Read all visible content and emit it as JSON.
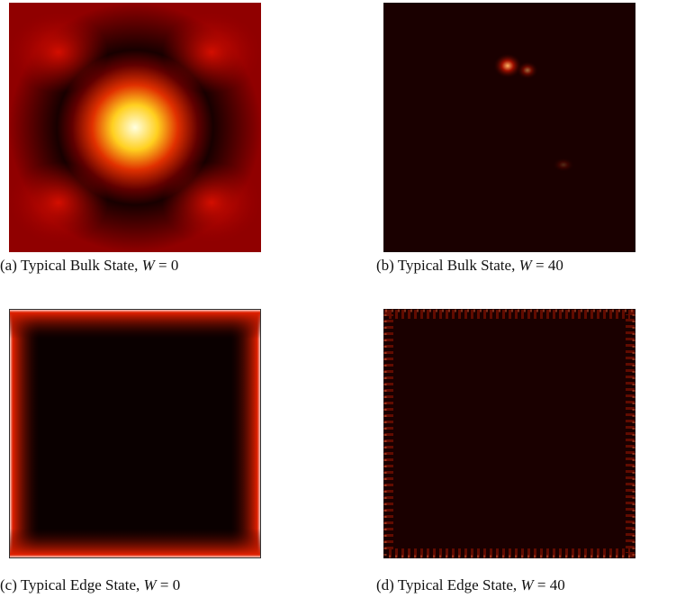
{
  "panels": [
    {
      "label": "(a)",
      "text": "Typical Bulk State,",
      "variable": "W",
      "value": "= 0"
    },
    {
      "label": "(b)",
      "text": "Typical Bulk State,",
      "variable": "W",
      "value": "= 40"
    },
    {
      "label": "(c)",
      "text": "Typical Edge State,",
      "variable": "W",
      "value": "= 0"
    },
    {
      "label": "(d)",
      "text": "Typical Edge State,",
      "variable": "W",
      "value": "= 40"
    }
  ]
}
